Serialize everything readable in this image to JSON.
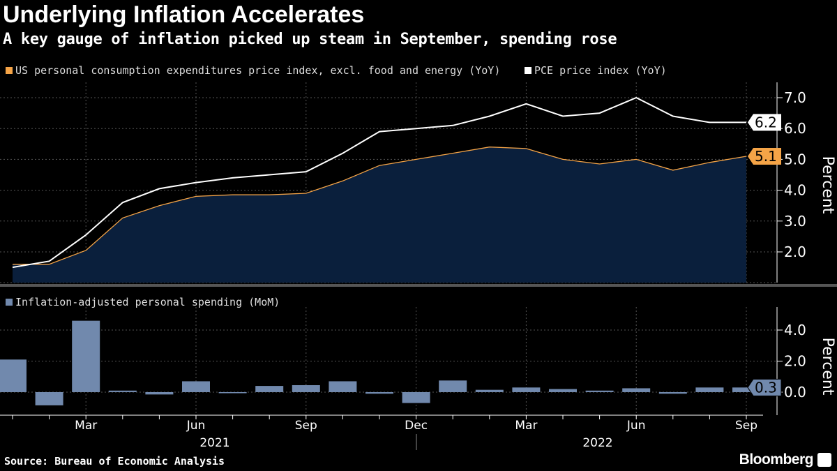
{
  "title": "Underlying Inflation Accelerates",
  "subtitle": "A key gauge of inflation picked up steam in September, spending rose",
  "source": "Source: Bureau of Economic Analysis",
  "brand": "Bloomberg",
  "chart_data": [
    {
      "type": "line",
      "x": [
        "2021-01",
        "2021-02",
        "2021-03",
        "2021-04",
        "2021-05",
        "2021-06",
        "2021-07",
        "2021-08",
        "2021-09",
        "2021-10",
        "2021-11",
        "2021-12",
        "2022-01",
        "2022-02",
        "2022-03",
        "2022-04",
        "2022-05",
        "2022-06",
        "2022-07",
        "2022-08",
        "2022-09"
      ],
      "series": [
        {
          "name": "US personal consumption expenditures price index, excl. food and energy (YoY)",
          "color": "#f5a447",
          "area_fill": "#0a1f3c",
          "values": [
            1.6,
            1.6,
            2.05,
            3.1,
            3.5,
            3.8,
            3.85,
            3.85,
            3.9,
            4.3,
            4.8,
            5.0,
            5.2,
            5.4,
            5.35,
            5.0,
            4.85,
            5.0,
            4.65,
            4.9,
            5.1
          ]
        },
        {
          "name": "PCE price index (YoY)",
          "color": "#ffffff",
          "values": [
            1.5,
            1.7,
            2.55,
            3.6,
            4.05,
            4.25,
            4.4,
            4.5,
            4.6,
            5.2,
            5.9,
            6.0,
            6.1,
            6.4,
            6.8,
            6.4,
            6.5,
            7.0,
            6.4,
            6.2,
            6.2
          ]
        }
      ],
      "ylabel": "Percent",
      "ylim": [
        1.0,
        7.5
      ],
      "yticks": [
        "2.0",
        "3.0",
        "4.0",
        "5.0",
        "6.0",
        "7.0"
      ],
      "last_value_labels": [
        "6.2",
        "5.1"
      ],
      "grid": true
    },
    {
      "type": "bar",
      "x": [
        "2021-01",
        "2021-02",
        "2021-03",
        "2021-04",
        "2021-05",
        "2021-06",
        "2021-07",
        "2021-08",
        "2021-09",
        "2021-10",
        "2021-11",
        "2021-12",
        "2022-01",
        "2022-02",
        "2022-03",
        "2022-04",
        "2022-05",
        "2022-06",
        "2022-07",
        "2022-08",
        "2022-09"
      ],
      "series": [
        {
          "name": "Inflation-adjusted personal spending (MoM)",
          "color": "#7189ad",
          "values": [
            2.1,
            -0.85,
            4.6,
            0.1,
            -0.15,
            0.7,
            -0.05,
            0.4,
            0.45,
            0.7,
            -0.1,
            -0.7,
            0.75,
            0.15,
            0.3,
            0.2,
            0.1,
            0.25,
            -0.1,
            0.3,
            0.3
          ]
        }
      ],
      "ylabel": "Percent",
      "ylim": [
        -1.5,
        5.0
      ],
      "yticks": [
        "0.0",
        "2.0",
        "4.0"
      ],
      "last_value_label": "0.3",
      "grid": true
    }
  ],
  "x_axis": {
    "month_labels": [
      "Mar",
      "Jun",
      "Sep",
      "Dec",
      "Mar",
      "Jun",
      "Sep"
    ],
    "year_labels": [
      "2021",
      "2022"
    ]
  }
}
